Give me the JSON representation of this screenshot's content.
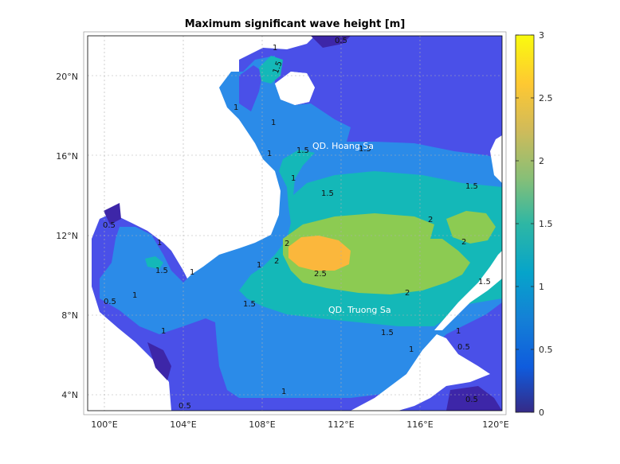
{
  "title": "Maximum significant wave height [m]",
  "map": {
    "lon_ticks": [
      "100°E",
      "104°E",
      "108°E",
      "112°E",
      "116°E",
      "120°E"
    ],
    "lat_ticks": [
      "4°N",
      "8°N",
      "12°N",
      "16°N",
      "20°N"
    ],
    "place_labels": {
      "hoang_sa": "QD. Hoang Sa",
      "truong_sa": "QD. Truong Sa"
    },
    "contour_labels": [
      "0.5",
      "1",
      "1.5",
      "1",
      "1",
      "1.5",
      "1",
      "1.5",
      "1.5",
      "1.5",
      "2",
      "2",
      "1",
      "2",
      "2",
      "1.5",
      "1",
      "1",
      "0.5",
      "1.5",
      "2.5",
      "2",
      "1.5",
      "1",
      "1",
      "1.5",
      "1",
      "1",
      "1",
      "0.5",
      "0.5",
      "1",
      "0.5",
      "0.5"
    ],
    "colors": {
      "land": "#ffffff",
      "lvl_0": "#3d26a8",
      "lvl_05": "#4a50e8",
      "lvl_1": "#2b8be8",
      "lvl_15": "#14b8b8",
      "lvl_2": "#8ccb52",
      "lvl_25": "#fbb73c"
    }
  },
  "colorbar": {
    "ticks": [
      "0",
      "0.5",
      "1",
      "1.5",
      "2",
      "2.5",
      "3"
    ],
    "min": 0,
    "max": 3
  }
}
